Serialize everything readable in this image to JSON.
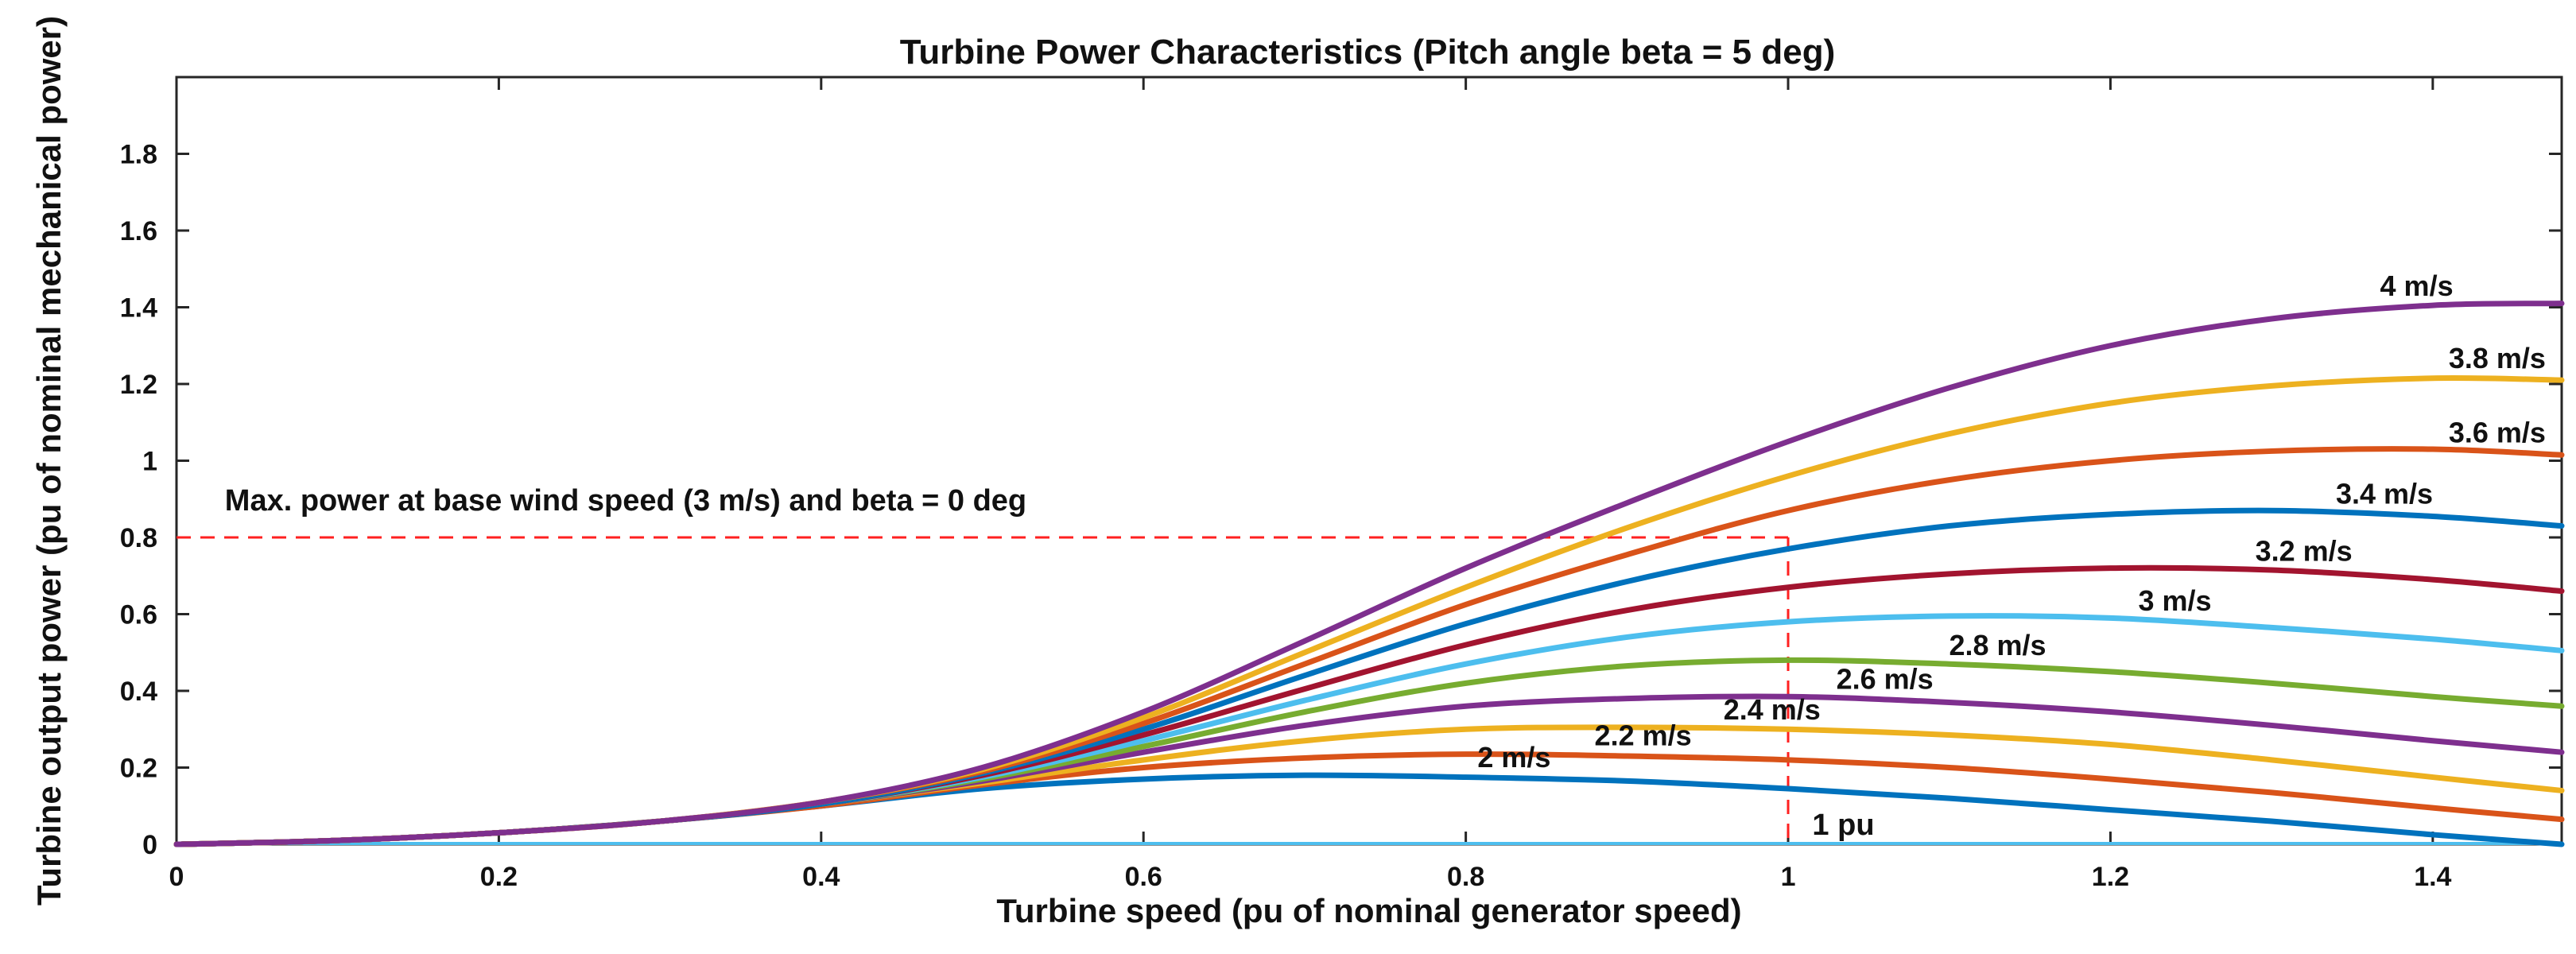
{
  "chart_data": {
    "type": "line",
    "title": "Turbine Power Characteristics (Pitch angle beta = 5 deg)",
    "xlabel": "Turbine speed (pu of nominal generator speed)",
    "ylabel": "Turbine output power (pu of nominal mechanical power)",
    "xlim": [
      0,
      1.48
    ],
    "ylim": [
      0,
      2.0
    ],
    "xticks": [
      "0",
      "0.2",
      "0.4",
      "0.6",
      "0.8",
      "1",
      "1.2",
      "1.4"
    ],
    "yticks": [
      "0",
      "0.2",
      "0.4",
      "0.6",
      "0.8",
      "1",
      "1.2",
      "1.4",
      "1.6",
      "1.8"
    ],
    "grid": false,
    "annotations": {
      "max_power_text": "Max. power at base wind speed (3 m/s) and beta = 0 deg",
      "max_power_level": 0.8,
      "base_speed_text": "1 pu",
      "base_speed": 1.0
    },
    "series": [
      {
        "name": "2 m/s",
        "color": "#0072BD",
        "x": [
          0,
          0.1,
          0.2,
          0.3,
          0.4,
          0.5,
          0.6,
          0.7,
          0.8,
          0.9,
          1.0,
          1.1,
          1.2,
          1.3,
          1.4,
          1.48
        ],
        "values": [
          0,
          0.01,
          0.03,
          0.06,
          0.1,
          0.145,
          0.17,
          0.18,
          0.175,
          0.165,
          0.145,
          0.12,
          0.09,
          0.06,
          0.025,
          0.0
        ]
      },
      {
        "name": "2.2 m/s",
        "color": "#D95319",
        "x": [
          0,
          0.1,
          0.2,
          0.3,
          0.4,
          0.5,
          0.6,
          0.7,
          0.8,
          0.9,
          1.0,
          1.1,
          1.2,
          1.3,
          1.4,
          1.48
        ],
        "values": [
          0,
          0.01,
          0.03,
          0.06,
          0.1,
          0.155,
          0.2,
          0.225,
          0.235,
          0.23,
          0.22,
          0.2,
          0.17,
          0.135,
          0.095,
          0.065
        ]
      },
      {
        "name": "2.4 m/s",
        "color": "#EDB120",
        "x": [
          0,
          0.1,
          0.2,
          0.3,
          0.4,
          0.5,
          0.6,
          0.7,
          0.8,
          0.9,
          1.0,
          1.1,
          1.2,
          1.3,
          1.4,
          1.48
        ],
        "values": [
          0,
          0.01,
          0.03,
          0.06,
          0.105,
          0.16,
          0.22,
          0.27,
          0.3,
          0.305,
          0.3,
          0.285,
          0.26,
          0.22,
          0.175,
          0.14
        ]
      },
      {
        "name": "2.6 m/s",
        "color": "#7E2F8E",
        "x": [
          0,
          0.1,
          0.2,
          0.3,
          0.4,
          0.5,
          0.6,
          0.7,
          0.8,
          0.9,
          1.0,
          1.1,
          1.2,
          1.3,
          1.4,
          1.48
        ],
        "values": [
          0,
          0.01,
          0.03,
          0.06,
          0.105,
          0.165,
          0.24,
          0.31,
          0.36,
          0.38,
          0.385,
          0.37,
          0.345,
          0.31,
          0.27,
          0.24
        ]
      },
      {
        "name": "2.8 m/s",
        "color": "#77AC30",
        "x": [
          0,
          0.1,
          0.2,
          0.3,
          0.4,
          0.5,
          0.6,
          0.7,
          0.8,
          0.9,
          1.0,
          1.1,
          1.2,
          1.3,
          1.4,
          1.48
        ],
        "values": [
          0,
          0.01,
          0.03,
          0.06,
          0.105,
          0.17,
          0.255,
          0.345,
          0.42,
          0.465,
          0.48,
          0.47,
          0.45,
          0.42,
          0.385,
          0.36
        ]
      },
      {
        "name": "3 m/s",
        "color": "#4DBEEE",
        "x": [
          0,
          0.1,
          0.2,
          0.3,
          0.4,
          0.5,
          0.6,
          0.7,
          0.8,
          0.9,
          1.0,
          1.1,
          1.2,
          1.3,
          1.4,
          1.48
        ],
        "values": [
          0,
          0.01,
          0.03,
          0.06,
          0.105,
          0.175,
          0.27,
          0.375,
          0.47,
          0.54,
          0.58,
          0.595,
          0.59,
          0.565,
          0.535,
          0.505
        ]
      },
      {
        "name": "3.2 m/s",
        "color": "#A2142F",
        "x": [
          0,
          0.1,
          0.2,
          0.3,
          0.4,
          0.5,
          0.6,
          0.7,
          0.8,
          0.9,
          1.0,
          1.1,
          1.2,
          1.3,
          1.4,
          1.48
        ],
        "values": [
          0,
          0.01,
          0.03,
          0.06,
          0.105,
          0.18,
          0.285,
          0.405,
          0.52,
          0.61,
          0.67,
          0.705,
          0.72,
          0.715,
          0.69,
          0.66
        ]
      },
      {
        "name": "3.4 m/s",
        "color": "#0072BD",
        "x": [
          0,
          0.1,
          0.2,
          0.3,
          0.4,
          0.5,
          0.6,
          0.7,
          0.8,
          0.9,
          1.0,
          1.1,
          1.2,
          1.3,
          1.4,
          1.48
        ],
        "values": [
          0,
          0.01,
          0.03,
          0.06,
          0.105,
          0.185,
          0.3,
          0.44,
          0.575,
          0.685,
          0.77,
          0.83,
          0.86,
          0.87,
          0.855,
          0.83
        ]
      },
      {
        "name": "3.6 m/s",
        "color": "#D95319",
        "x": [
          0,
          0.1,
          0.2,
          0.3,
          0.4,
          0.5,
          0.6,
          0.7,
          0.8,
          0.9,
          1.0,
          1.1,
          1.2,
          1.3,
          1.4,
          1.48
        ],
        "values": [
          0,
          0.01,
          0.03,
          0.06,
          0.11,
          0.19,
          0.315,
          0.47,
          0.625,
          0.755,
          0.87,
          0.95,
          1.0,
          1.025,
          1.03,
          1.015
        ]
      },
      {
        "name": "3.8 m/s",
        "color": "#EDB120",
        "x": [
          0,
          0.1,
          0.2,
          0.3,
          0.4,
          0.5,
          0.6,
          0.7,
          0.8,
          0.9,
          1.0,
          1.1,
          1.2,
          1.3,
          1.4,
          1.48
        ],
        "values": [
          0,
          0.01,
          0.03,
          0.06,
          0.11,
          0.195,
          0.33,
          0.5,
          0.67,
          0.825,
          0.96,
          1.07,
          1.15,
          1.195,
          1.215,
          1.21
        ]
      },
      {
        "name": "4 m/s",
        "color": "#7E2F8E",
        "x": [
          0,
          0.1,
          0.2,
          0.3,
          0.4,
          0.5,
          0.6,
          0.7,
          0.8,
          0.9,
          1.0,
          1.1,
          1.2,
          1.3,
          1.4,
          1.48
        ],
        "values": [
          0,
          0.01,
          0.03,
          0.06,
          0.11,
          0.2,
          0.345,
          0.53,
          0.72,
          0.89,
          1.05,
          1.19,
          1.3,
          1.37,
          1.405,
          1.41
        ]
      }
    ]
  }
}
